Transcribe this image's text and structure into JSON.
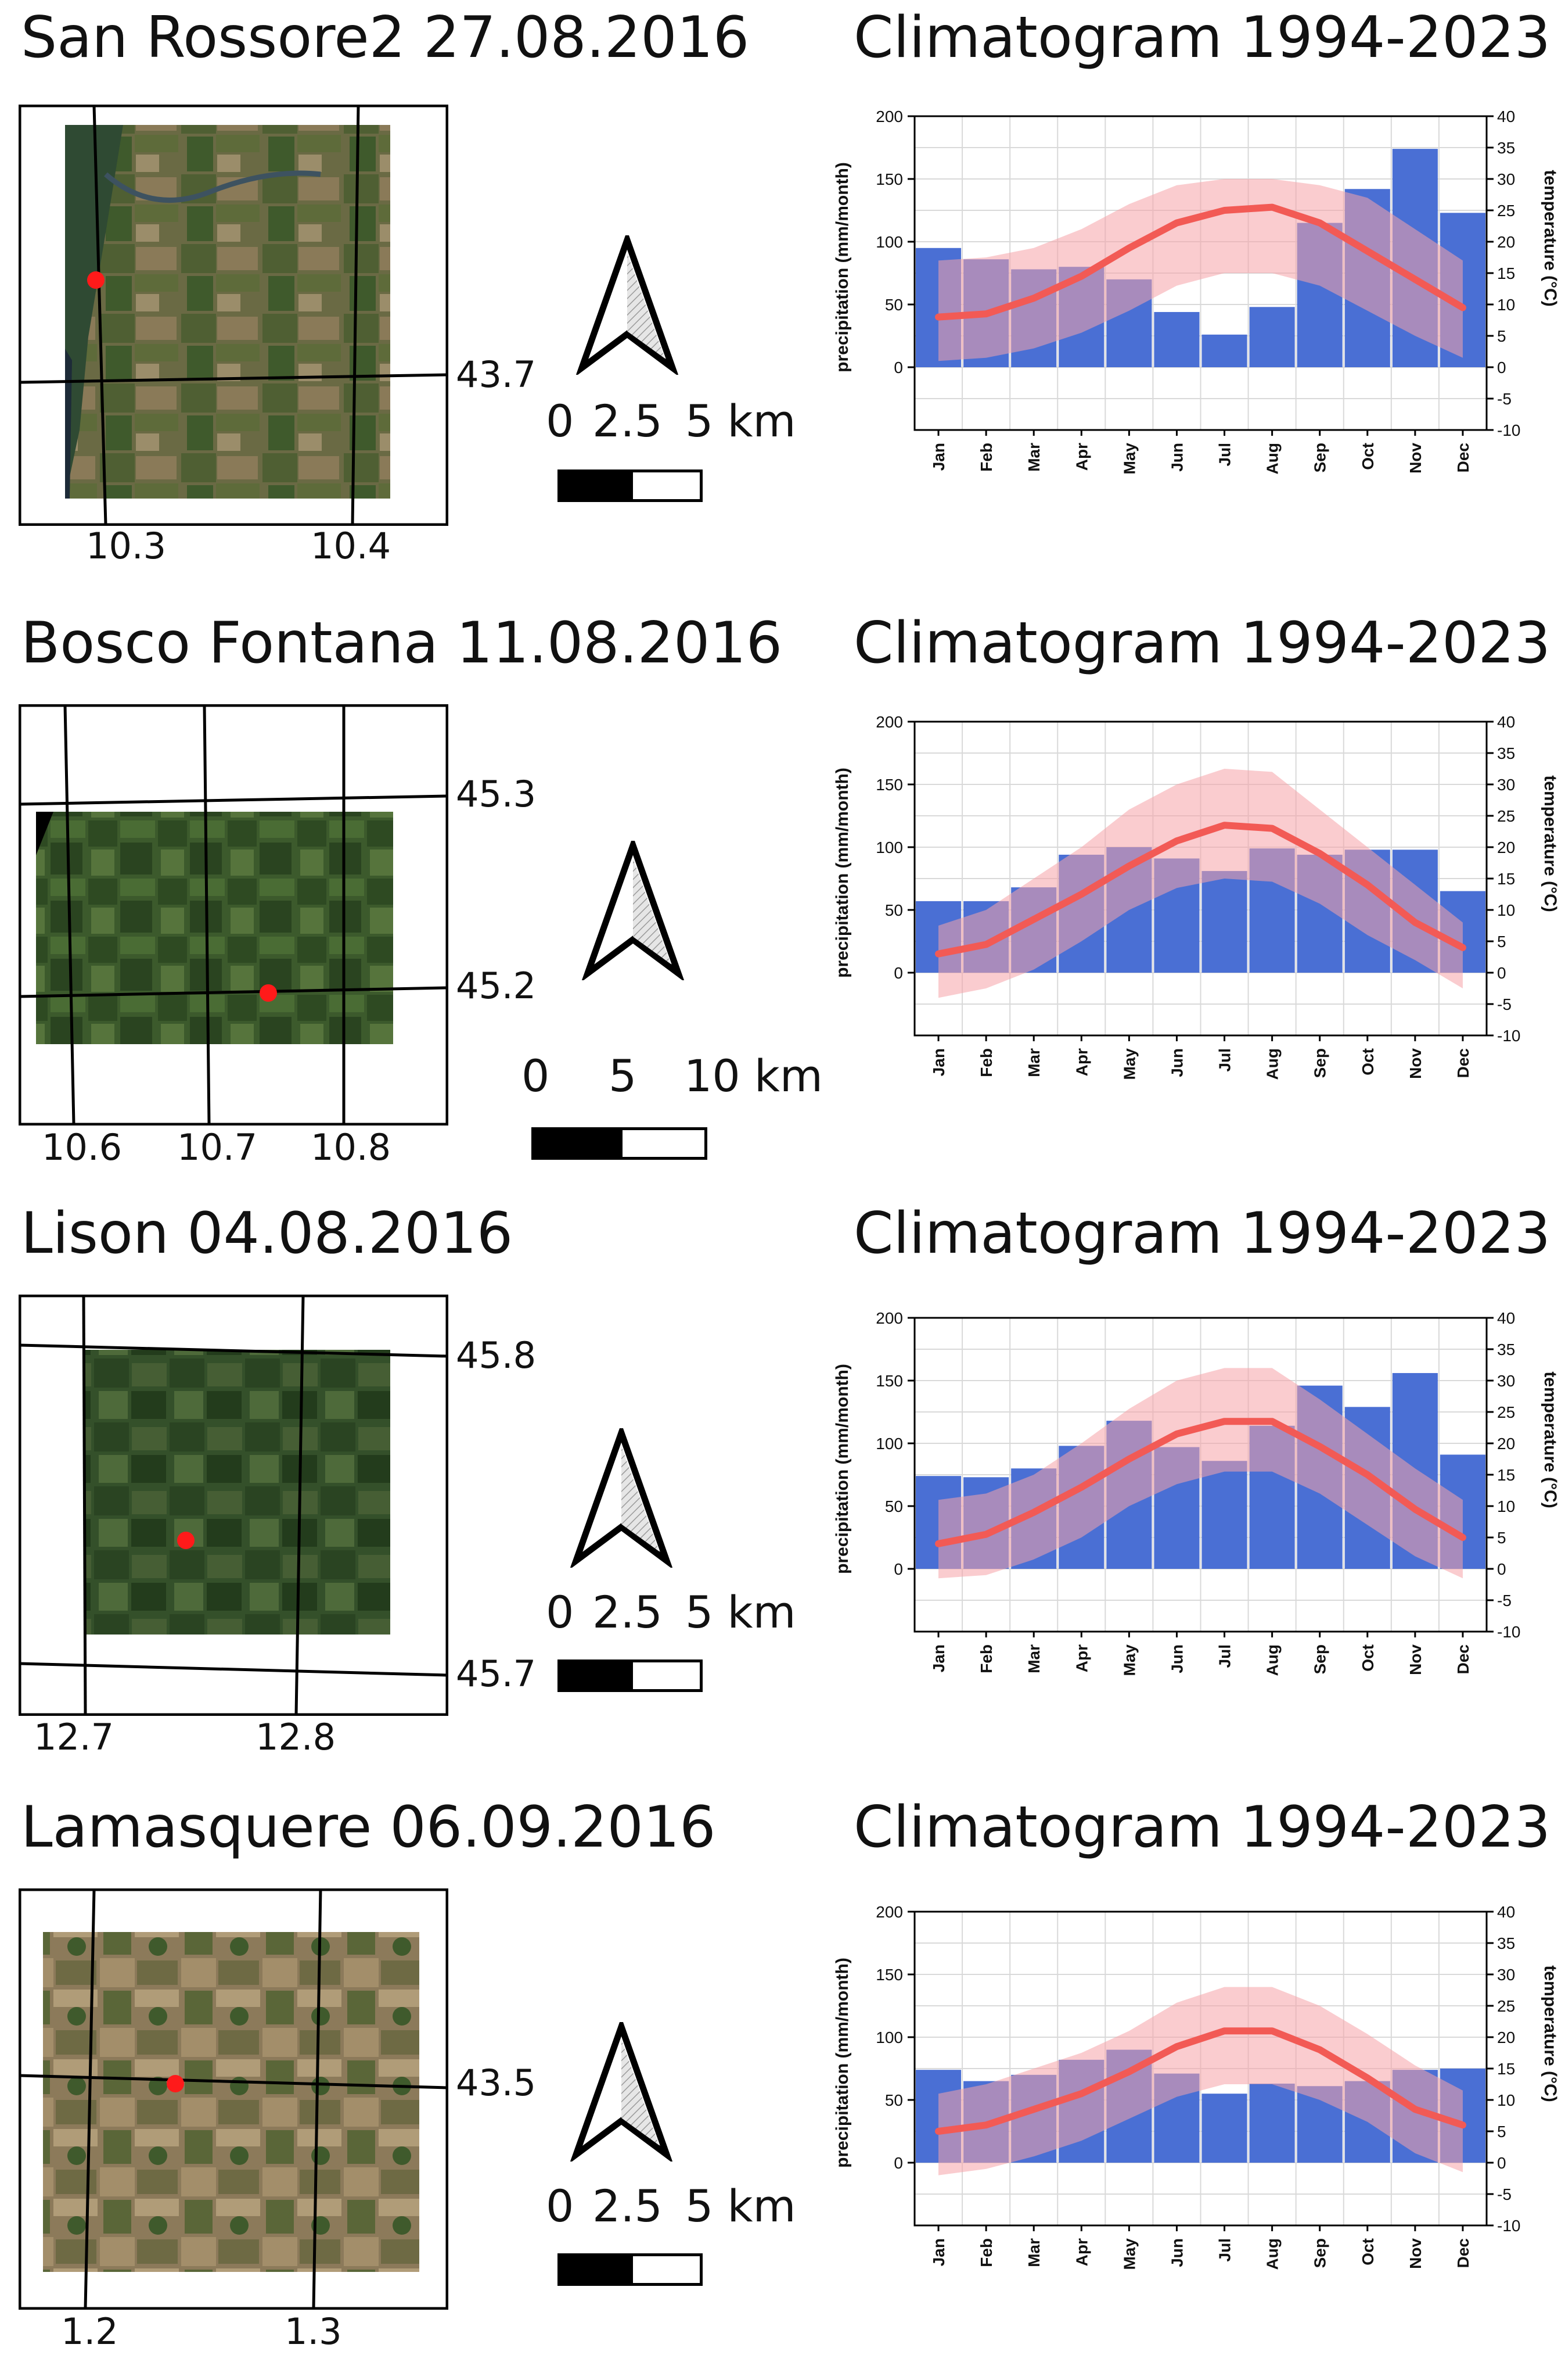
{
  "clim_title": "Climatogram 1994-2023",
  "panels": [
    {
      "title": "San Rossore2 27.08.2016",
      "lat_labels": [
        "43.7"
      ],
      "lon_labels": [
        "10.3",
        "10.4"
      ],
      "scale": {
        "labels": [
          "0",
          "2.5",
          "5 km"
        ]
      }
    },
    {
      "title": "Bosco Fontana 11.08.2016",
      "lat_labels": [
        "45.3",
        "45.2"
      ],
      "lon_labels": [
        "10.6",
        "10.7",
        "10.8"
      ],
      "scale": {
        "labels": [
          "0",
          "5",
          "10 km"
        ]
      }
    },
    {
      "title": "Lison 04.08.2016",
      "lat_labels": [
        "45.8",
        "45.7"
      ],
      "lon_labels": [
        "12.7",
        "12.8"
      ],
      "scale": {
        "labels": [
          "0",
          "2.5",
          "5 km"
        ]
      }
    },
    {
      "title": "Lamasquere 06.09.2016",
      "lat_labels": [
        "43.5"
      ],
      "lon_labels": [
        "1.2",
        "1.3"
      ],
      "scale": {
        "labels": [
          "0",
          "2.5",
          "5 km"
        ]
      }
    }
  ],
  "colors": {
    "precip": "#4a6fd4",
    "temp_line": "#f25a55",
    "temp_band": "#f5a3a8",
    "grid": "#d9d9d9"
  },
  "chart_data": [
    {
      "type": "bar",
      "title": "Climatogram 1994-2023",
      "categories": [
        "Jan",
        "Feb",
        "Mar",
        "Apr",
        "May",
        "Jun",
        "Jul",
        "Aug",
        "Sep",
        "Oct",
        "Nov",
        "Dec"
      ],
      "series": [
        {
          "name": "precipitation",
          "values": [
            95,
            86,
            78,
            80,
            70,
            44,
            26,
            48,
            115,
            142,
            174,
            123
          ]
        },
        {
          "name": "temperature mean",
          "values": [
            8.0,
            8.5,
            11,
            14.5,
            19,
            23,
            25,
            25.5,
            23,
            18.5,
            14,
            9.5
          ]
        },
        {
          "name": "temperature max",
          "values": [
            17,
            17.5,
            19,
            22,
            26,
            29,
            30,
            30,
            29,
            27,
            22,
            17
          ]
        },
        {
          "name": "temperature min",
          "values": [
            1,
            1.5,
            3,
            5.5,
            9,
            13,
            15,
            15,
            13,
            9,
            5,
            1.5
          ]
        }
      ],
      "ylabel": "precipitation (mm/month)",
      "y2label": "temperature (°C)",
      "ylim": [
        -50,
        200
      ],
      "y2lim": [
        -10,
        40
      ],
      "yticks": [
        "200",
        "150",
        "100",
        "50",
        "0"
      ],
      "y2ticks": [
        "40",
        "35",
        "30",
        "25",
        "20",
        "15",
        "10",
        "5",
        "0",
        "-5",
        "-10"
      ]
    },
    {
      "type": "bar",
      "title": "Climatogram 1994-2023",
      "categories": [
        "Jan",
        "Feb",
        "Mar",
        "Apr",
        "May",
        "Jun",
        "Jul",
        "Aug",
        "Sep",
        "Oct",
        "Nov",
        "Dec"
      ],
      "series": [
        {
          "name": "precipitation",
          "values": [
            57,
            57,
            68,
            94,
            100,
            91,
            81,
            99,
            94,
            98,
            98,
            65
          ]
        },
        {
          "name": "temperature mean",
          "values": [
            3,
            4.5,
            8.5,
            12.5,
            17,
            21,
            23.5,
            23,
            19,
            14,
            8,
            4
          ]
        },
        {
          "name": "temperature max",
          "values": [
            7.5,
            10,
            15,
            20,
            26,
            30,
            32.5,
            32,
            26,
            20,
            14,
            8
          ]
        },
        {
          "name": "temperature min",
          "values": [
            -4,
            -2.5,
            0.5,
            5,
            10,
            13.5,
            15,
            14.5,
            11,
            6,
            2,
            -2.5
          ]
        }
      ],
      "ylabel": "precipitation (mm/month)",
      "y2label": "temperature (°C)",
      "ylim": [
        -50,
        200
      ],
      "y2lim": [
        -10,
        40
      ],
      "yticks": [
        "200",
        "150",
        "100",
        "50",
        "0"
      ],
      "y2ticks": [
        "40",
        "35",
        "30",
        "25",
        "20",
        "15",
        "10",
        "5",
        "0",
        "-5",
        "-10"
      ]
    },
    {
      "type": "bar",
      "title": "Climatogram 1994-2023",
      "categories": [
        "Jan",
        "Feb",
        "Mar",
        "Apr",
        "May",
        "Jun",
        "Jul",
        "Aug",
        "Sep",
        "Oct",
        "Nov",
        "Dec"
      ],
      "series": [
        {
          "name": "precipitation",
          "values": [
            74,
            73,
            80,
            98,
            118,
            97,
            86,
            114,
            146,
            129,
            156,
            91
          ]
        },
        {
          "name": "temperature mean",
          "values": [
            4,
            5.5,
            9,
            13,
            17.5,
            21.5,
            23.5,
            23.5,
            19.5,
            15,
            9.5,
            5
          ]
        },
        {
          "name": "temperature max",
          "values": [
            11,
            12,
            15,
            20,
            25.5,
            30,
            32,
            32,
            27,
            21.5,
            16,
            11
          ]
        },
        {
          "name": "temperature min",
          "values": [
            -1.5,
            -1,
            1.5,
            5,
            10,
            13.5,
            15.5,
            15.5,
            12,
            7,
            2,
            -1.5
          ]
        }
      ],
      "ylabel": "precipitation (mm/month)",
      "y2label": "temperature (°C)",
      "ylim": [
        -50,
        200
      ],
      "y2lim": [
        -10,
        40
      ],
      "yticks": [
        "200",
        "150",
        "100",
        "50",
        "0"
      ],
      "y2ticks": [
        "40",
        "35",
        "30",
        "25",
        "20",
        "15",
        "10",
        "5",
        "0",
        "-5",
        "-10"
      ]
    },
    {
      "type": "bar",
      "title": "Climatogram 1994-2023",
      "categories": [
        "Jan",
        "Feb",
        "Mar",
        "Apr",
        "May",
        "Jun",
        "Jul",
        "Aug",
        "Sep",
        "Oct",
        "Nov",
        "Dec"
      ],
      "series": [
        {
          "name": "precipitation",
          "values": [
            74,
            65,
            70,
            82,
            90,
            71,
            55,
            63,
            61,
            65,
            74,
            75
          ]
        },
        {
          "name": "temperature mean",
          "values": [
            5,
            6,
            8.5,
            11,
            14.5,
            18.5,
            21,
            21,
            18,
            13.5,
            8.5,
            6
          ]
        },
        {
          "name": "temperature max",
          "values": [
            11,
            12.5,
            15,
            17.5,
            21,
            25.5,
            28,
            28,
            25,
            20.5,
            15.5,
            11.5
          ]
        },
        {
          "name": "temperature min",
          "values": [
            -2,
            -1,
            1,
            3.5,
            7,
            10.5,
            12.5,
            12.5,
            10,
            6.5,
            1.5,
            -1.5
          ]
        }
      ],
      "ylabel": "precipitation (mm/month)",
      "y2label": "temperature (°C)",
      "ylim": [
        -50,
        200
      ],
      "y2lim": [
        -10,
        40
      ],
      "yticks": [
        "200",
        "150",
        "100",
        "50",
        "0"
      ],
      "y2ticks": [
        "40",
        "35",
        "30",
        "25",
        "20",
        "15",
        "10",
        "5",
        "0",
        "-5",
        "-10"
      ]
    }
  ]
}
